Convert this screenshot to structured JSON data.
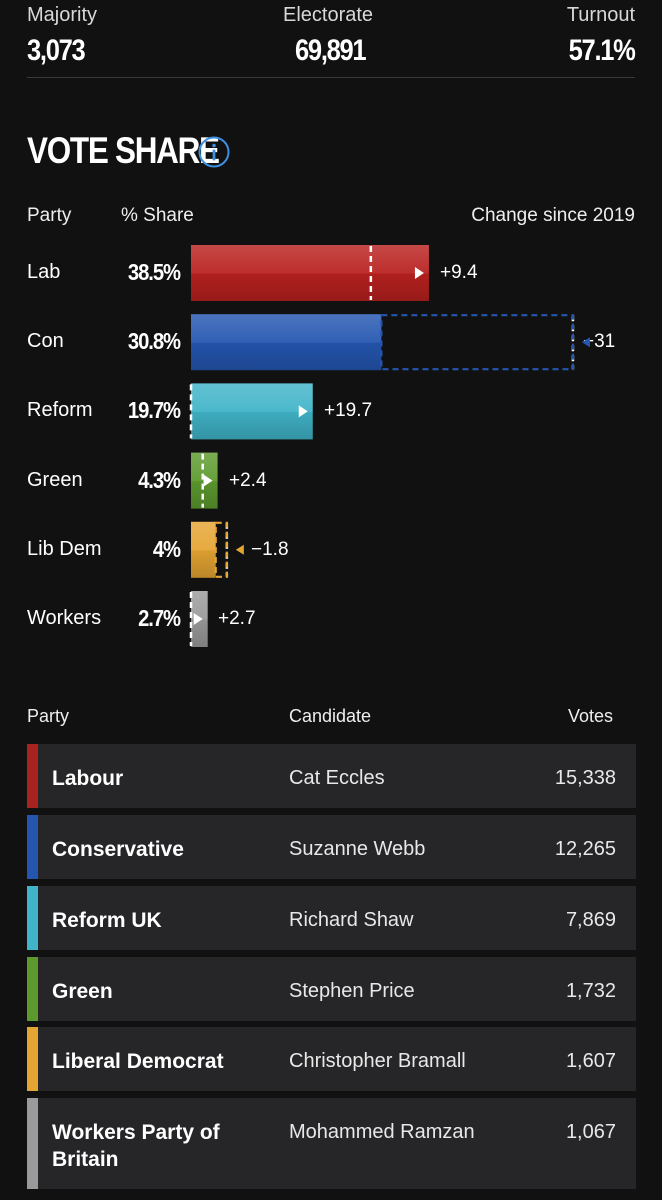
{
  "stats": {
    "majority": {
      "label": "Majority",
      "value": "3,073"
    },
    "electorate": {
      "label": "Electorate",
      "value": "69,891"
    },
    "turnout": {
      "label": "Turnout",
      "value": "57.1%"
    }
  },
  "vote_share": {
    "title": "VOTE SHARE",
    "info_icon": "info-circle-icon",
    "col_party": "Party",
    "col_share": "% Share",
    "col_change": "Change since 2019",
    "rows": [
      {
        "party": "Lab",
        "share": "38.5%",
        "change": "+9.4"
      },
      {
        "party": "Con",
        "share": "30.8%",
        "change": "−31"
      },
      {
        "party": "Reform",
        "share": "19.7%",
        "change": "+19.7"
      },
      {
        "party": "Green",
        "share": "4.3%",
        "change": "+2.4"
      },
      {
        "party": "Lib Dem",
        "share": "4%",
        "change": "−1.8"
      },
      {
        "party": "Workers",
        "share": "2.7%",
        "change": "+2.7"
      }
    ]
  },
  "chart_data": {
    "type": "bar",
    "categories": [
      "Lab",
      "Con",
      "Reform",
      "Green",
      "Lib Dem",
      "Workers"
    ],
    "series": [
      {
        "name": "% Share",
        "values": [
          38.5,
          30.8,
          19.7,
          4.3,
          4.0,
          2.7
        ]
      },
      {
        "name": "Change since 2019",
        "values": [
          9.4,
          -31,
          19.7,
          2.4,
          -1.8,
          2.7
        ]
      }
    ],
    "previous_share_2019": [
      29.1,
      61.8,
      0,
      1.9,
      5.8,
      0
    ],
    "colors": [
      "#b8211f",
      "#2456b0",
      "#40b4c8",
      "#5d9a2e",
      "#e5a533",
      "#9a9a9a"
    ]
  },
  "results": {
    "col_party": "Party",
    "col_candidate": "Candidate",
    "col_votes": "Votes",
    "rows": [
      {
        "party": "Labour",
        "candidate": "Cat Eccles",
        "votes": "15,338",
        "color": "#a82320"
      },
      {
        "party": "Conservative",
        "candidate": "Suzanne Webb",
        "votes": "12,265",
        "color": "#2456b0"
      },
      {
        "party": "Reform UK",
        "candidate": "Richard Shaw",
        "votes": "7,869",
        "color": "#40b4c8"
      },
      {
        "party": "Green",
        "candidate": "Stephen Price",
        "votes": "1,732",
        "color": "#5d9a2e"
      },
      {
        "party": "Liberal Democrat",
        "candidate": "Christopher Bramall",
        "votes": "1,607",
        "color": "#e5a533"
      },
      {
        "party": "Workers Party of Britain",
        "candidate": "Mohammed Ramzan",
        "votes": "1,067",
        "color": "#9a9a9a"
      }
    ]
  }
}
